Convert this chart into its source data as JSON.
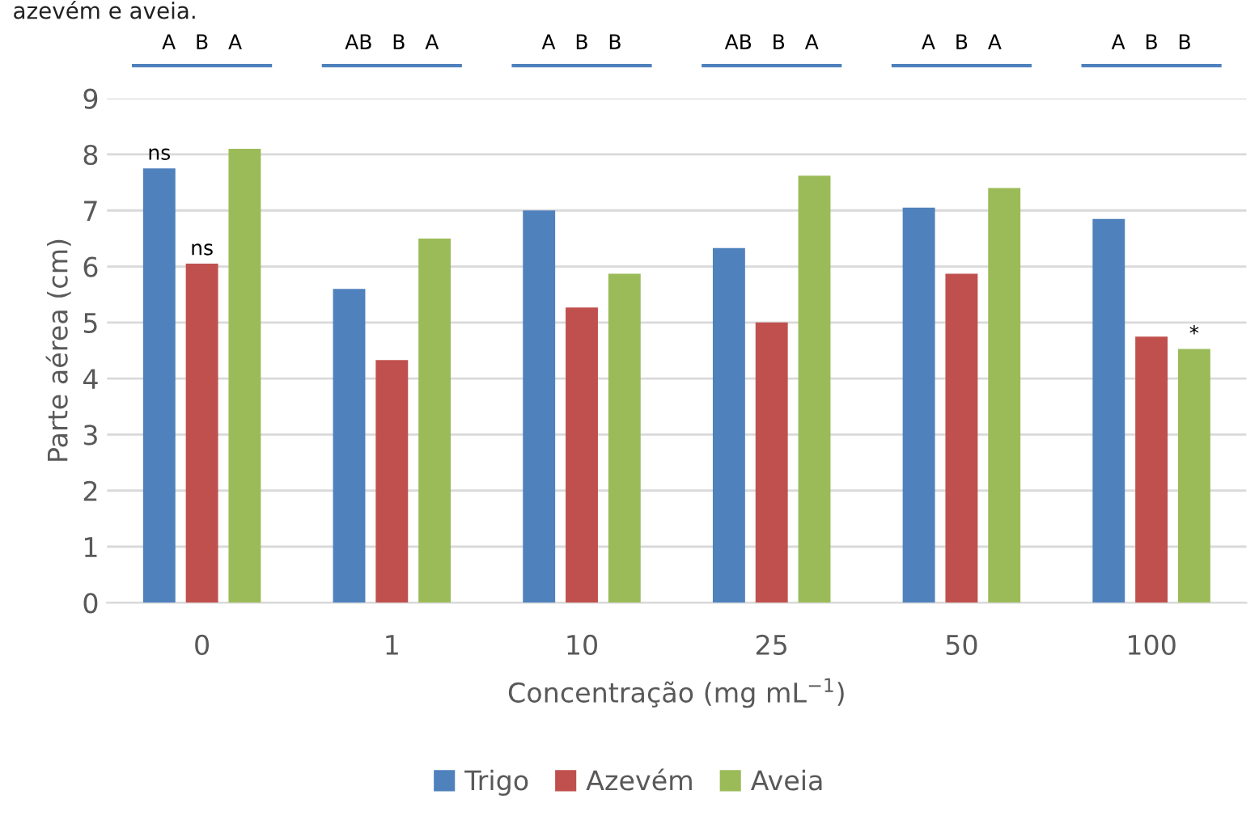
{
  "chart_data": {
    "type": "bar",
    "xlabel": "Concentração (mg mL$^{−1}$)",
    "ylabel": "Parte aérea (cm)",
    "categories": [
      "0",
      "1",
      "10",
      "25",
      "50",
      "100"
    ],
    "series": [
      {
        "name": "Trigo",
        "color": "#4f81bd",
        "values": [
          7.75,
          5.6,
          7.0,
          6.33,
          7.05,
          6.85
        ],
        "value_labels": [
          "ns",
          null,
          null,
          null,
          null,
          null
        ]
      },
      {
        "name": "Azevém",
        "color": "#c0504d",
        "values": [
          6.05,
          4.33,
          5.27,
          5.0,
          5.87,
          4.75
        ],
        "value_labels": [
          "ns",
          null,
          null,
          null,
          null,
          null
        ]
      },
      {
        "name": "Aveia",
        "color": "#9bbb59",
        "values": [
          8.1,
          6.5,
          5.87,
          7.62,
          7.4,
          4.53
        ],
        "value_labels": [
          null,
          null,
          null,
          null,
          null,
          "*"
        ]
      }
    ],
    "ylim": [
      0,
      9
    ],
    "yticks": [
      0,
      1,
      2,
      3,
      4,
      5,
      6,
      7,
      8,
      9
    ],
    "grid": "y",
    "legend": "bottom",
    "annotations": [
      "azevém e aveia.",
      "A B A",
      "AB B A",
      "A B B",
      "AB B A",
      "A B A",
      "A B B"
    ]
  }
}
